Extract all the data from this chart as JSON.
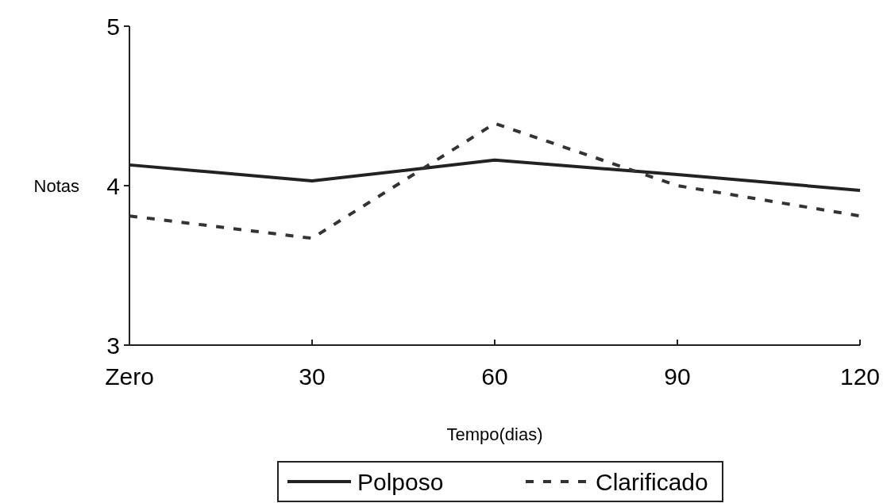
{
  "chart_data": {
    "type": "line",
    "xlabel": "Tempo(dias)",
    "ylabel": "Notas",
    "categories": [
      "Zero",
      "30",
      "60",
      "90",
      "120"
    ],
    "series": [
      {
        "name": "Polposo",
        "color": "#222222",
        "line_style": "solid",
        "values": [
          4.13,
          4.03,
          4.16,
          4.07,
          3.97
        ]
      },
      {
        "name": "Clarificado",
        "color": "#333333",
        "line_style": "dashed",
        "values": [
          3.81,
          3.67,
          4.39,
          4.0,
          3.81
        ]
      }
    ],
    "ylim": [
      3,
      5
    ],
    "yticks": [
      3,
      4,
      5
    ],
    "grid": false,
    "legend": "bottom",
    "marker": "none"
  }
}
